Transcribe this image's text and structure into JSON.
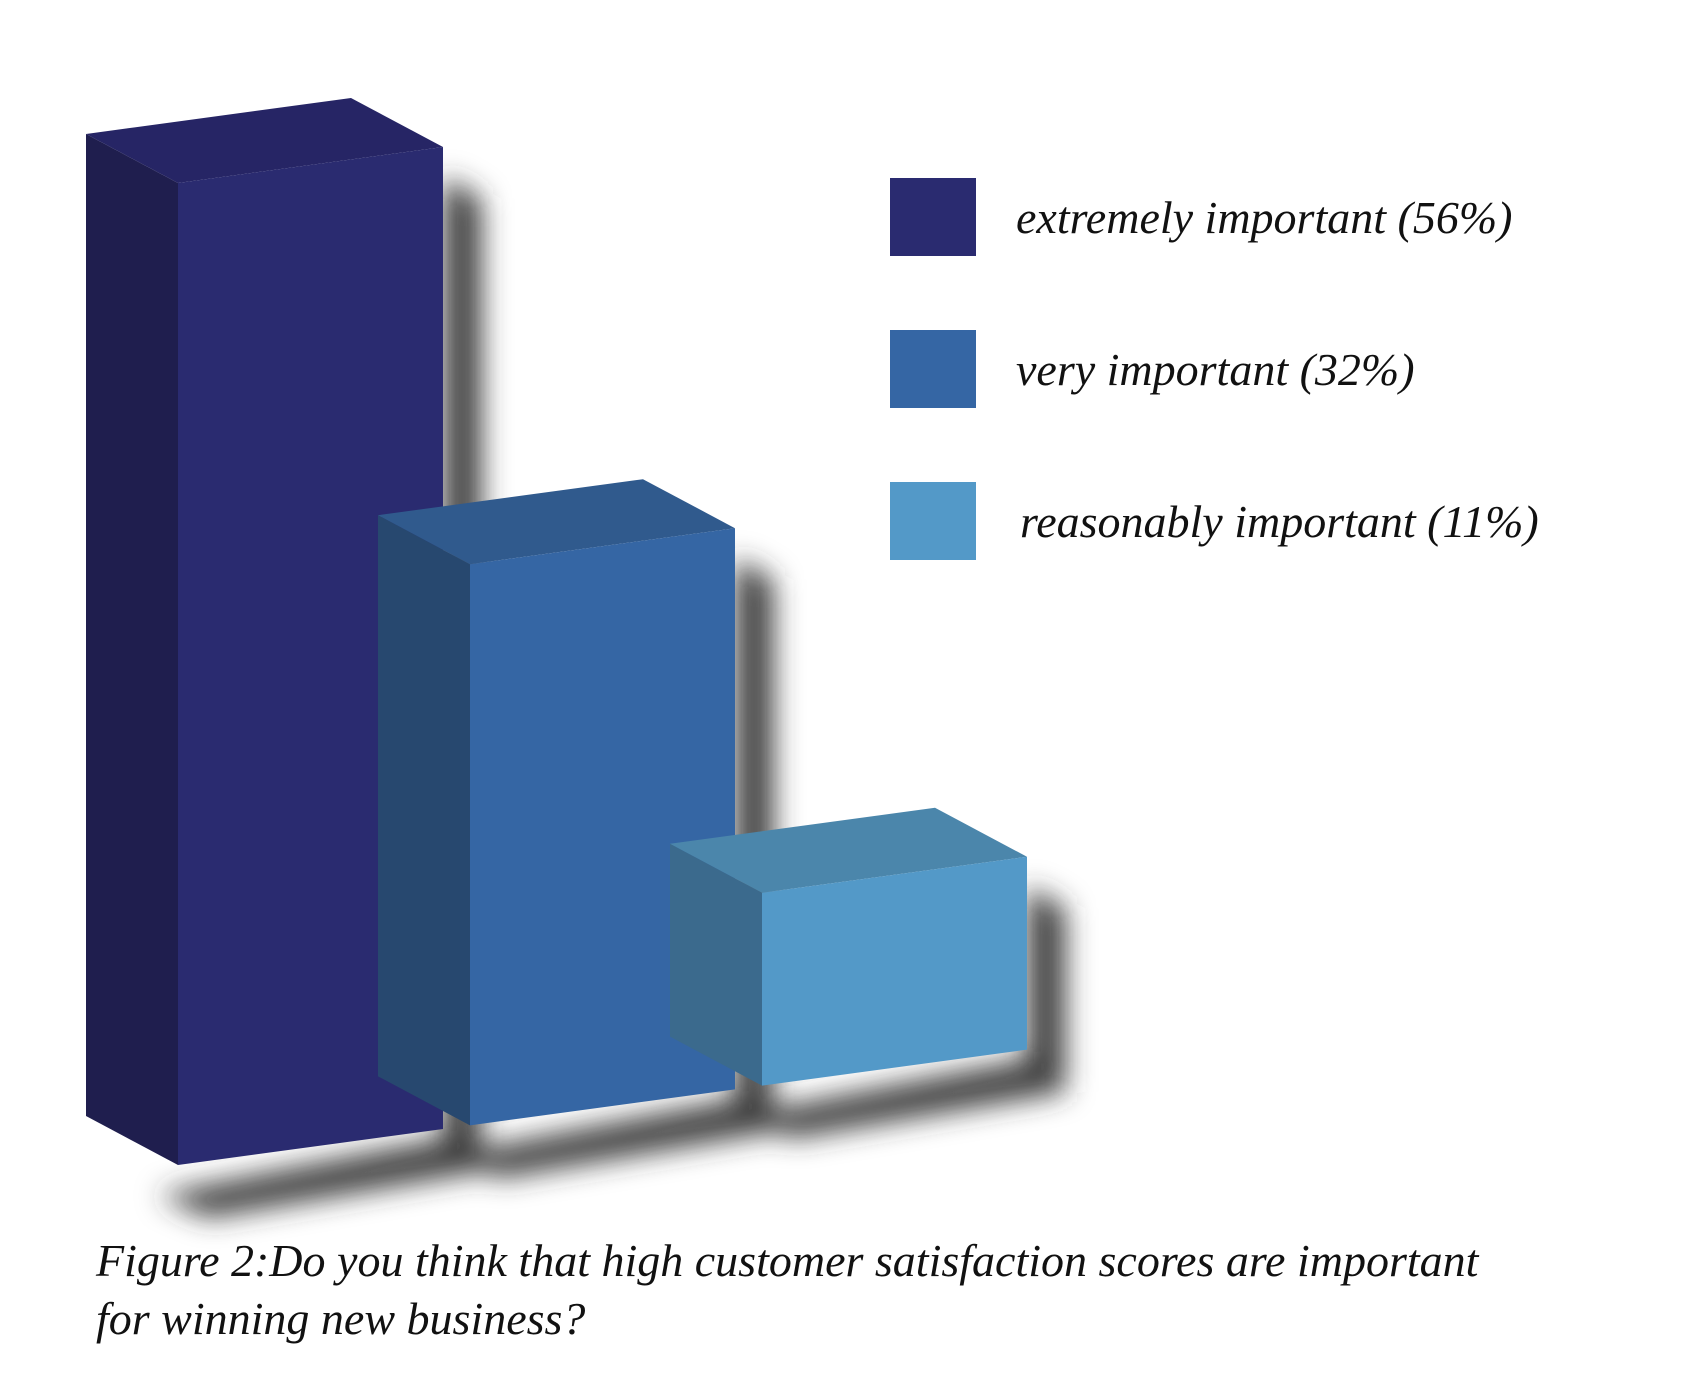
{
  "chart_data": {
    "type": "bar",
    "title": "",
    "xlabel": "",
    "ylabel": "",
    "categories": [
      "extremely important (56%)",
      "very important (32%)",
      "reasonably important (11%)"
    ],
    "values": [
      56,
      32,
      11
    ],
    "unit": "%",
    "ylim": [
      0,
      56
    ],
    "grid": false,
    "legend": "right",
    "three_d": true,
    "colors": {
      "front": [
        "#2a2b70",
        "#3566a4",
        "#5399c8"
      ],
      "side": [
        "#1f1e4e",
        "#27486f",
        "#3b6a8d"
      ],
      "top": [
        "#262565",
        "#305a8d",
        "#4b86ab"
      ],
      "shadow": "#333333"
    }
  },
  "caption": {
    "line1": "Figure 2:Do you think that high customer satisfaction scores are important",
    "line2": "for winning new business?"
  }
}
